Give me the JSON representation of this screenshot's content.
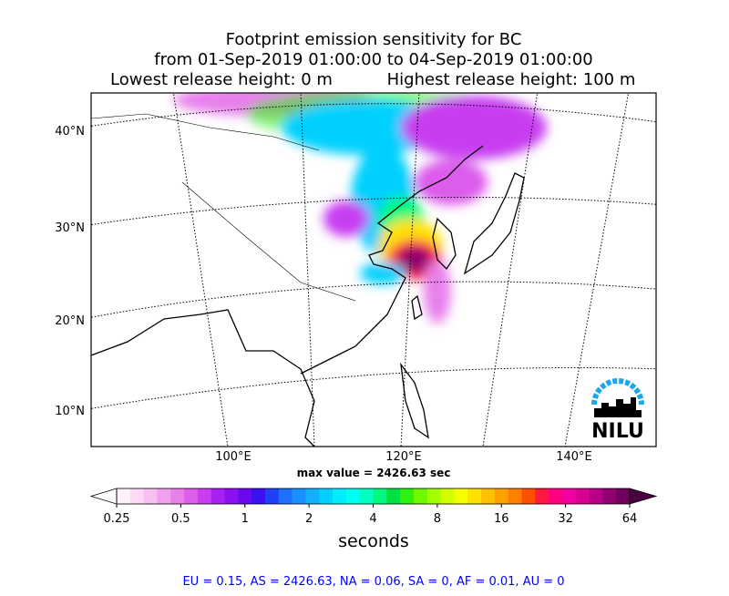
{
  "header": {
    "title": [
      "Footprint emission sensitivity for BC",
      "from 01-Sep-2019 01:00:00 to 04-Sep-2019 01:00:00"
    ],
    "release_low": "Lowest release height: 0 m",
    "release_high": "Highest release height: 100 m"
  },
  "map": {
    "lat_labels": [
      "40°N",
      "30°N",
      "20°N",
      "10°N"
    ],
    "lon_labels": [
      "100°E",
      "120°E",
      "140°E"
    ],
    "max_value": "max value = 2426.63 sec",
    "logo": "NILU"
  },
  "colorbar": {
    "ticks": [
      0.25,
      0.5,
      1,
      2,
      4,
      8,
      16,
      32,
      64
    ],
    "label": "seconds",
    "colors": [
      "#fff0fa",
      "#ffd8f4",
      "#f8c0f0",
      "#f0a0ee",
      "#e880ec",
      "#dc5cec",
      "#c83ef0",
      "#a820f4",
      "#8a10f0",
      "#6a08f0",
      "#3a10f0",
      "#2040f8",
      "#2070ff",
      "#1890ff",
      "#10b0ff",
      "#00d0ff",
      "#00ecff",
      "#00fff0",
      "#00ffc0",
      "#00f880",
      "#00e040",
      "#30f010",
      "#70f800",
      "#a0ff00",
      "#d0ff00",
      "#f8ff00",
      "#ffe000",
      "#ffc000",
      "#ffa000",
      "#ff8000",
      "#ff5000",
      "#ff1840",
      "#ff0080",
      "#f000a0",
      "#d80090",
      "#b80088",
      "#900070",
      "#700060"
    ]
  },
  "footer": "EU = 0.15,  AS = 2426.63,  NA = 0.06,  SA = 0,  AF = 0.01,  AU = 0"
}
